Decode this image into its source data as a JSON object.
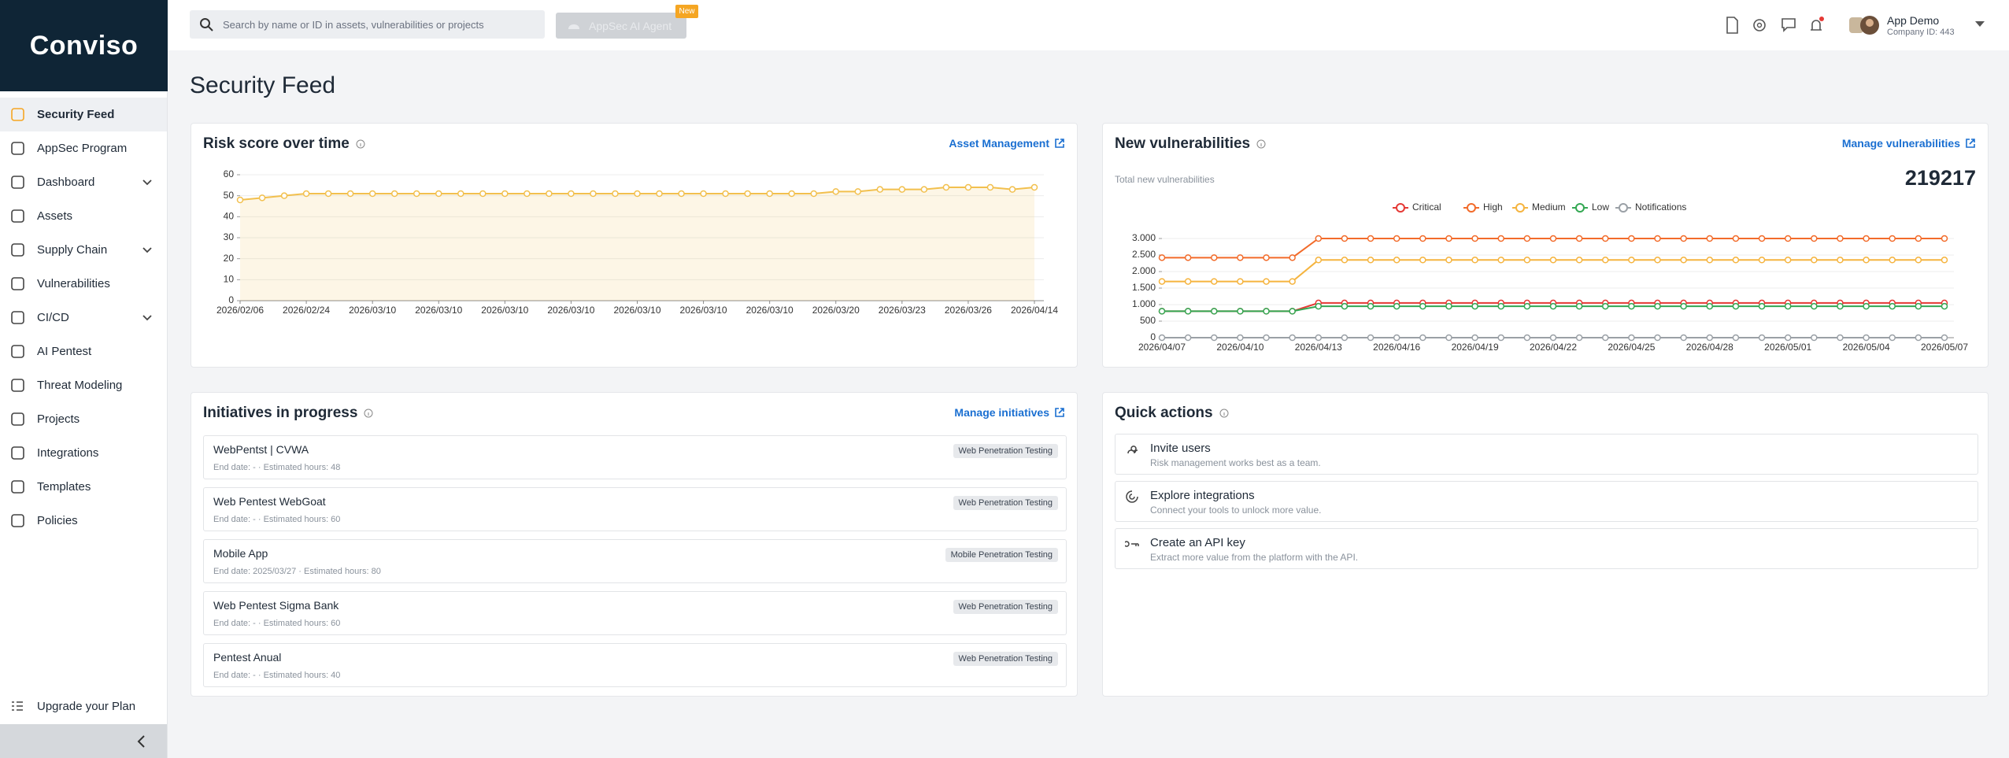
{
  "sidebar": {
    "brand": "Conviso",
    "nav": [
      {
        "label": "Security Feed",
        "active": true
      },
      {
        "label": "AppSec Program"
      },
      {
        "label": "Dashboard",
        "expandable": true
      },
      {
        "label": "Assets"
      },
      {
        "label": "Supply Chain",
        "expandable": true
      },
      {
        "label": "Vulnerabilities"
      },
      {
        "label": "CI/CD",
        "expandable": true
      },
      {
        "label": "AI Pentest"
      },
      {
        "label": "Threat Modeling"
      },
      {
        "label": "Projects"
      },
      {
        "label": "Integrations"
      },
      {
        "label": "Templates"
      },
      {
        "label": "Policies"
      }
    ],
    "upgrade": "Upgrade your Plan"
  },
  "topbar": {
    "search_placeholder": "Search by name or ID in assets, vulnerabilities or projects",
    "ai_agent": "AppSec AI Agent",
    "badge": "New",
    "user_name": "App Demo",
    "company": "Company ID: 443"
  },
  "page_title": "Security Feed",
  "risk_card": {
    "title": "Risk score over time",
    "link": "Asset Management"
  },
  "vuln_card": {
    "title": "New vulnerabilities",
    "link": "Manage vulnerabilities",
    "total_label": "Total new vulnerabilities",
    "total": "219217"
  },
  "chart_data": [
    {
      "type": "area",
      "x": [
        "2026/02/06",
        null,
        null,
        "2026/02/24",
        null,
        null,
        "2026/03/10",
        null,
        null,
        "2026/03/10",
        null,
        null,
        "2026/03/10",
        null,
        null,
        "2026/03/10",
        null,
        null,
        "2026/03/10",
        null,
        null,
        "2026/03/10",
        null,
        null,
        "2026/03/10",
        null,
        null,
        "2026/03/20",
        null,
        null,
        "2026/03/23",
        null,
        null,
        "2026/03/26",
        null,
        null,
        "2026/04/14"
      ],
      "values": [
        48,
        49,
        50,
        51,
        51,
        51,
        51,
        51,
        51,
        51,
        51,
        51,
        51,
        51,
        51,
        51,
        51,
        51,
        51,
        51,
        51,
        51,
        51,
        51,
        51,
        51,
        51,
        52,
        52,
        53,
        53,
        53,
        54,
        54,
        54,
        53,
        54
      ],
      "color": "#f2c04e",
      "ylim": [
        0,
        60
      ],
      "yticks": [
        0,
        10,
        20,
        30,
        40,
        50,
        60
      ],
      "grid": true
    },
    {
      "type": "line",
      "x": [
        "2026/04/07",
        null,
        null,
        "2026/04/10",
        null,
        null,
        "2026/04/13",
        null,
        null,
        "2026/04/16",
        null,
        null,
        "2026/04/19",
        null,
        null,
        "2026/04/22",
        null,
        null,
        "2026/04/25",
        null,
        null,
        "2026/04/28",
        null,
        null,
        "2026/05/01",
        null,
        null,
        "2026/05/04",
        null,
        null,
        "2026/05/07"
      ],
      "series": [
        {
          "name": "Critical",
          "color": "#e53935",
          "values": [
            800,
            800,
            800,
            800,
            800,
            800,
            1050,
            1050,
            1050,
            1050,
            1050,
            1050,
            1050,
            1050,
            1050,
            1050,
            1050,
            1050,
            1050,
            1050,
            1050,
            1050,
            1050,
            1050,
            1050,
            1050,
            1050,
            1050,
            1050,
            1050,
            1050
          ]
        },
        {
          "name": "High",
          "color": "#f26b2a",
          "values": [
            2420,
            2420,
            2420,
            2420,
            2420,
            2420,
            3000,
            3000,
            3000,
            3000,
            3000,
            3000,
            3000,
            3000,
            3000,
            3000,
            3000,
            3000,
            3000,
            3000,
            3000,
            3000,
            3000,
            3000,
            3000,
            3000,
            3000,
            3000,
            3000,
            3000,
            3000
          ]
        },
        {
          "name": "Medium",
          "color": "#f5b43f",
          "values": [
            1700,
            1700,
            1700,
            1700,
            1700,
            1700,
            2350,
            2350,
            2350,
            2350,
            2350,
            2350,
            2350,
            2350,
            2350,
            2350,
            2350,
            2350,
            2350,
            2350,
            2350,
            2350,
            2350,
            2350,
            2350,
            2350,
            2350,
            2350,
            2350,
            2350,
            2350
          ]
        },
        {
          "name": "Low",
          "color": "#34a853",
          "values": [
            800,
            800,
            800,
            800,
            800,
            800,
            950,
            950,
            950,
            950,
            950,
            950,
            950,
            950,
            950,
            950,
            950,
            950,
            950,
            950,
            950,
            950,
            950,
            950,
            950,
            950,
            950,
            950,
            950,
            950,
            950
          ]
        },
        {
          "name": "Notifications",
          "color": "#9aa0a6",
          "values": [
            0,
            0,
            0,
            0,
            0,
            0,
            0,
            0,
            0,
            0,
            0,
            0,
            0,
            0,
            0,
            0,
            0,
            0,
            0,
            0,
            0,
            0,
            0,
            0,
            0,
            0,
            0,
            0,
            0,
            0,
            0
          ]
        }
      ],
      "ylim": [
        0,
        3000
      ],
      "yticks": [
        0,
        500,
        {
          "value": 1000,
          "label": "1.000"
        },
        {
          "value": 1500,
          "label": "1.500"
        },
        {
          "value": 2000,
          "label": "2.000"
        },
        {
          "value": 2500,
          "label": "2.500"
        },
        {
          "value": 3000,
          "label": "3.000"
        }
      ],
      "grid": true,
      "legend": "top"
    }
  ],
  "initiatives": {
    "title": "Initiatives in progress",
    "link": "Manage initiatives",
    "items": [
      {
        "name": "WebPentst | CVWA",
        "meta": "End date: - · Estimated hours: 48",
        "tag": "Web Penetration Testing"
      },
      {
        "name": "Web Pentest WebGoat",
        "meta": "End date: - · Estimated hours: 60",
        "tag": "Web Penetration Testing"
      },
      {
        "name": "Mobile App",
        "meta": "End date: 2025/03/27 · Estimated hours: 80",
        "tag": "Mobile Penetration Testing"
      },
      {
        "name": "Web Pentest Sigma Bank",
        "meta": "End date: - · Estimated hours: 60",
        "tag": "Web Penetration Testing"
      },
      {
        "name": "Pentest Anual",
        "meta": "End date: - · Estimated hours: 40",
        "tag": "Web Penetration Testing"
      }
    ]
  },
  "quick_actions": {
    "title": "Quick actions",
    "items": [
      {
        "title": "Invite users",
        "description": "Risk management works best as a team."
      },
      {
        "title": "Explore integrations",
        "description": "Connect your tools to unlock more value."
      },
      {
        "title": "Create an API key",
        "description": "Extract more value from the platform with the API."
      }
    ]
  }
}
